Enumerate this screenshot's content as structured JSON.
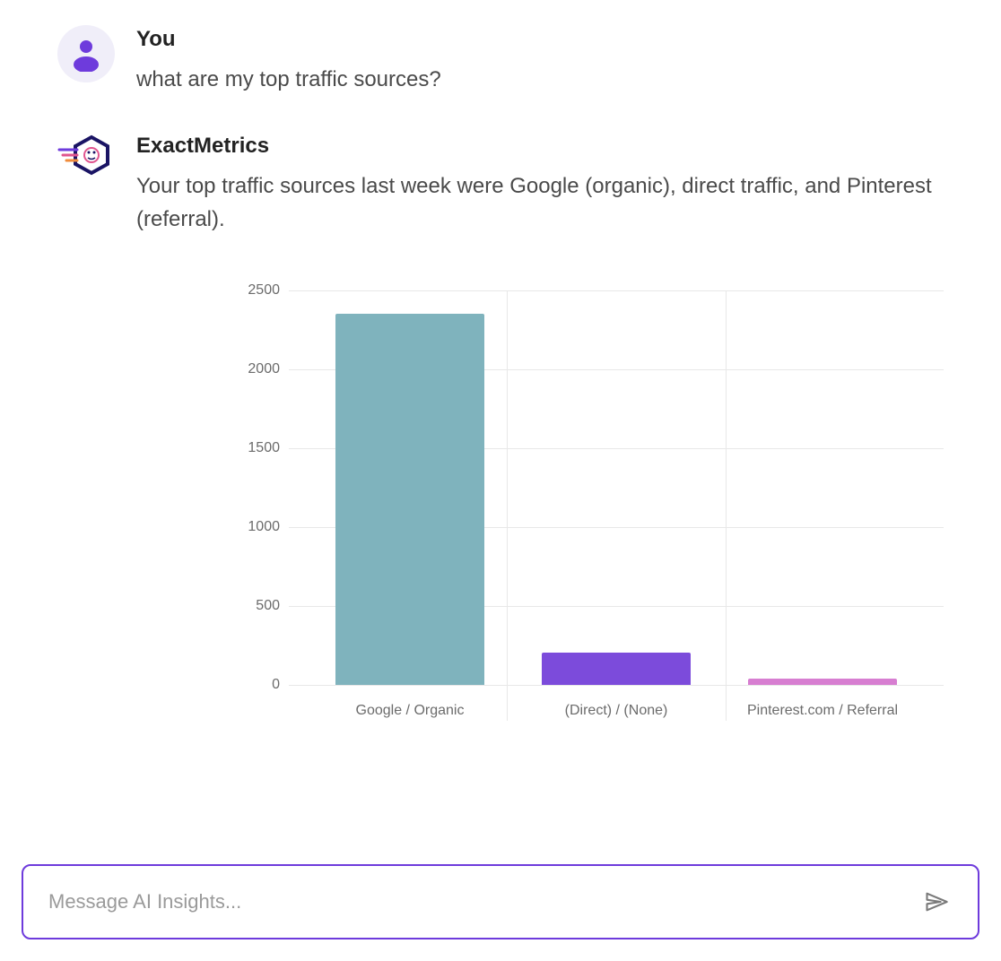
{
  "user_message": {
    "name": "You",
    "text": "what are my top traffic sources?"
  },
  "bot_message": {
    "name": "ExactMetrics",
    "text": "Your top traffic sources last week were Google (organic), direct traffic, and Pinterest (referral)."
  },
  "chart": {
    "type": "bar",
    "ylim_max": 2500,
    "ytick_step": 500,
    "yticks": [
      0,
      500,
      1000,
      1500,
      2000,
      2500
    ],
    "grid_color": "#e8e8e8",
    "tick_font_size": 16,
    "tick_color": "#6b6b6b",
    "background_color": "#ffffff",
    "bars": [
      {
        "label": "Google / Organic",
        "value": 2350,
        "color": "#7fb3bd"
      },
      {
        "label": "(Direct) / (None)",
        "value": 200,
        "color": "#7c4bdb"
      },
      {
        "label": "Pinterest.com / Referral",
        "value": 40,
        "color": "#d77ed1"
      }
    ]
  },
  "input": {
    "placeholder": "Message AI Insights...",
    "border_color": "#6e3bdc",
    "send_icon_color": "#7a7a7a"
  },
  "avatar_colors": {
    "user_bg": "#f0eef9",
    "user_fill": "#6e3bdc",
    "bot_hex_stroke": "#1a1464",
    "bot_lines": [
      "#6e3bdc",
      "#e0558f",
      "#f08c3c"
    ]
  }
}
